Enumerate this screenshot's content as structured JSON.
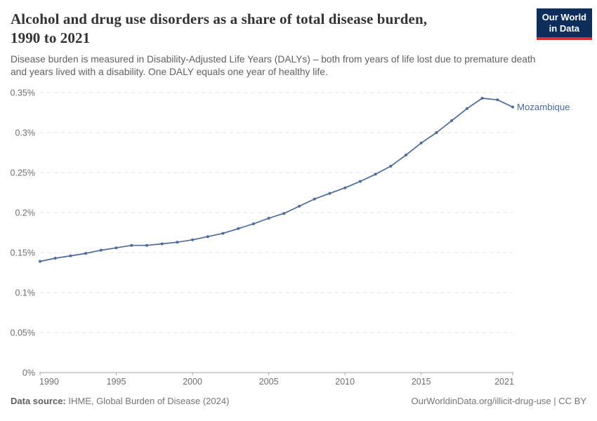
{
  "header": {
    "title_line1": "Alcohol and drug use disorders as a share of total disease burden,",
    "title_line2": "1990 to 2021",
    "subtitle_line1": "Disease burden is measured in Disability-Adjusted Life Years (DALYs) – both from years of life lost due to premature death",
    "subtitle_line2": "and years lived with a disability. One DALY equals one year of healthy life.",
    "logo": {
      "line1": "Our World",
      "line2": "in Data"
    }
  },
  "footer": {
    "datasource_label": "Data source:",
    "datasource_value": "IHME, Global Burden of Disease (2024)",
    "right_text": "OurWorldinData.org/illicit-drug-use | CC BY"
  },
  "colors": {
    "line": "#4c6a9c",
    "entity_label": "#4c6a9c",
    "gridline": "#e3e3e3",
    "axis_line": "#a6a6a6",
    "axis_text": "#6e6e6e",
    "logo_bg": "#0d2e5a",
    "logo_accent": "#d0342c"
  },
  "chart_data": {
    "type": "line",
    "title": "Alcohol and drug use disorders as a share of total disease burden, 1990 to 2021",
    "unit": "%",
    "xlim": [
      1990,
      2021
    ],
    "ylim": [
      0,
      0.35
    ],
    "grid": "horizontal-dashed",
    "legend": "end-of-line-label",
    "x_ticks": [
      1990,
      1995,
      2000,
      2005,
      2010,
      2015,
      2021
    ],
    "y_ticks": [
      {
        "value": 0,
        "label": "0%"
      },
      {
        "value": 0.05,
        "label": "0.05%"
      },
      {
        "value": 0.1,
        "label": "0.1%"
      },
      {
        "value": 0.15,
        "label": "0.15%"
      },
      {
        "value": 0.2,
        "label": "0.2%"
      },
      {
        "value": 0.25,
        "label": "0.25%"
      },
      {
        "value": 0.3,
        "label": "0.3%"
      },
      {
        "value": 0.35,
        "label": "0.35%"
      }
    ],
    "x": [
      1990,
      1991,
      1992,
      1993,
      1994,
      1995,
      1996,
      1997,
      1998,
      1999,
      2000,
      2001,
      2002,
      2003,
      2004,
      2005,
      2006,
      2007,
      2008,
      2009,
      2010,
      2011,
      2012,
      2013,
      2014,
      2015,
      2016,
      2017,
      2018,
      2019,
      2020,
      2021
    ],
    "series": [
      {
        "name": "Mozambique",
        "color": "#4c6a9c",
        "values": [
          0.139,
          0.143,
          0.146,
          0.149,
          0.153,
          0.156,
          0.159,
          0.159,
          0.161,
          0.163,
          0.166,
          0.17,
          0.174,
          0.18,
          0.186,
          0.193,
          0.199,
          0.208,
          0.217,
          0.224,
          0.231,
          0.239,
          0.248,
          0.258,
          0.272,
          0.287,
          0.3,
          0.315,
          0.33,
          0.343,
          0.341,
          0.332
        ]
      }
    ]
  }
}
